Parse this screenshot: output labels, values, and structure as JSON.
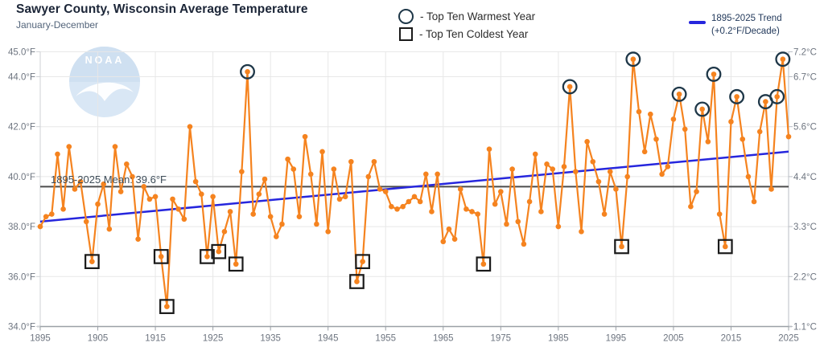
{
  "header": {
    "title": "Sawyer County, Wisconsin Average Temperature",
    "subtitle": "January-December"
  },
  "legend": {
    "warmest_label": "- Top Ten Warmest Year",
    "coldest_label": "- Top Ten Coldest Year"
  },
  "trend_legend": {
    "line1": "1895-2025 Trend",
    "line2": "(+0.2°F/Decade)"
  },
  "watermark_text": "NOAA",
  "colors": {
    "series": "#f5831f",
    "trend": "#2626dd",
    "mean_line": "#4d4d4d",
    "warm_marker": "#1e3748",
    "cold_marker": "#1a1a1a",
    "grid": "#e7e7e7",
    "axis": "#9aa0a6",
    "tick_text": "#6e7580",
    "mean_text": "#3d4c58",
    "watermark_fill": "#d9e7f5",
    "watermark_cap": "#cfe0f1"
  },
  "chart_data": {
    "type": "line",
    "title": "Sawyer County, Wisconsin Average Temperature",
    "subtitle": "January-December",
    "start_year": 1895,
    "end_year": 2025,
    "unit_left": "°F",
    "unit_right": "°C",
    "ylim_f": [
      34,
      45
    ],
    "mean_label": "1895-2025 Mean: 39.6°F",
    "mean_f": 39.6,
    "trend_f_per_decade": 0.2,
    "trend_line_f": {
      "start": 38.2,
      "end": 41.0
    },
    "grid": true,
    "values_f": [
      38.0,
      38.4,
      38.5,
      40.9,
      38.7,
      41.2,
      39.5,
      39.8,
      38.2,
      36.6,
      38.9,
      39.7,
      37.9,
      41.2,
      39.4,
      40.5,
      40.0,
      37.5,
      39.6,
      39.1,
      39.2,
      36.8,
      34.8,
      39.1,
      38.7,
      38.3,
      42.0,
      39.8,
      39.3,
      36.8,
      39.2,
      37.0,
      37.8,
      38.6,
      36.5,
      40.2,
      44.2,
      38.5,
      39.3,
      39.9,
      38.4,
      37.6,
      38.1,
      40.7,
      40.3,
      38.4,
      41.6,
      40.1,
      38.1,
      41.0,
      37.8,
      40.3,
      39.1,
      39.2,
      40.6,
      35.8,
      36.6,
      40.0,
      40.6,
      39.5,
      39.4,
      38.8,
      38.7,
      38.8,
      39.0,
      39.2,
      39.0,
      40.1,
      38.6,
      40.1,
      37.4,
      37.9,
      37.5,
      39.5,
      38.7,
      38.6,
      38.5,
      36.5,
      41.1,
      38.9,
      39.4,
      38.1,
      40.3,
      38.2,
      37.3,
      39.0,
      40.9,
      38.6,
      40.5,
      40.3,
      38.0,
      40.4,
      43.6,
      40.2,
      37.8,
      41.4,
      40.6,
      39.8,
      38.5,
      40.2,
      39.5,
      37.2,
      40.0,
      44.7,
      42.6,
      41.0,
      42.5,
      41.5,
      40.1,
      40.4,
      42.3,
      43.3,
      41.9,
      38.8,
      39.4,
      42.7,
      41.4,
      44.1,
      38.5,
      37.2,
      42.2,
      43.2,
      41.5,
      40.0,
      39.0,
      41.8,
      43.0,
      39.5,
      43.2,
      44.7,
      41.6
    ],
    "top_ten_warmest_years": [
      1931,
      1987,
      1998,
      2006,
      2010,
      2012,
      2016,
      2021,
      2023,
      2024
    ],
    "top_ten_coldest_years": [
      1904,
      1916,
      1917,
      1924,
      1926,
      1929,
      1950,
      1951,
      1972,
      1996,
      2014
    ],
    "yticks": [
      {
        "value": 45,
        "label_f": "45.0°F",
        "label_c": "7.2°C"
      },
      {
        "value": 44,
        "label_f": "44.0°F",
        "label_c": "6.7°C"
      },
      {
        "value": 42,
        "label_f": "42.0°F",
        "label_c": "5.6°C"
      },
      {
        "value": 40,
        "label_f": "40.0°F",
        "label_c": "4.4°C"
      },
      {
        "value": 38,
        "label_f": "38.0°F",
        "label_c": "3.3°C"
      },
      {
        "value": 36,
        "label_f": "36.0°F",
        "label_c": "2.2°C"
      },
      {
        "value": 34,
        "label_f": "34.0°F",
        "label_c": "1.1°C"
      }
    ],
    "xticks": [
      "1895",
      "1905",
      "1915",
      "1925",
      "1935",
      "1945",
      "1955",
      "1965",
      "1975",
      "1985",
      "1995",
      "2005",
      "2015",
      "2025"
    ]
  }
}
